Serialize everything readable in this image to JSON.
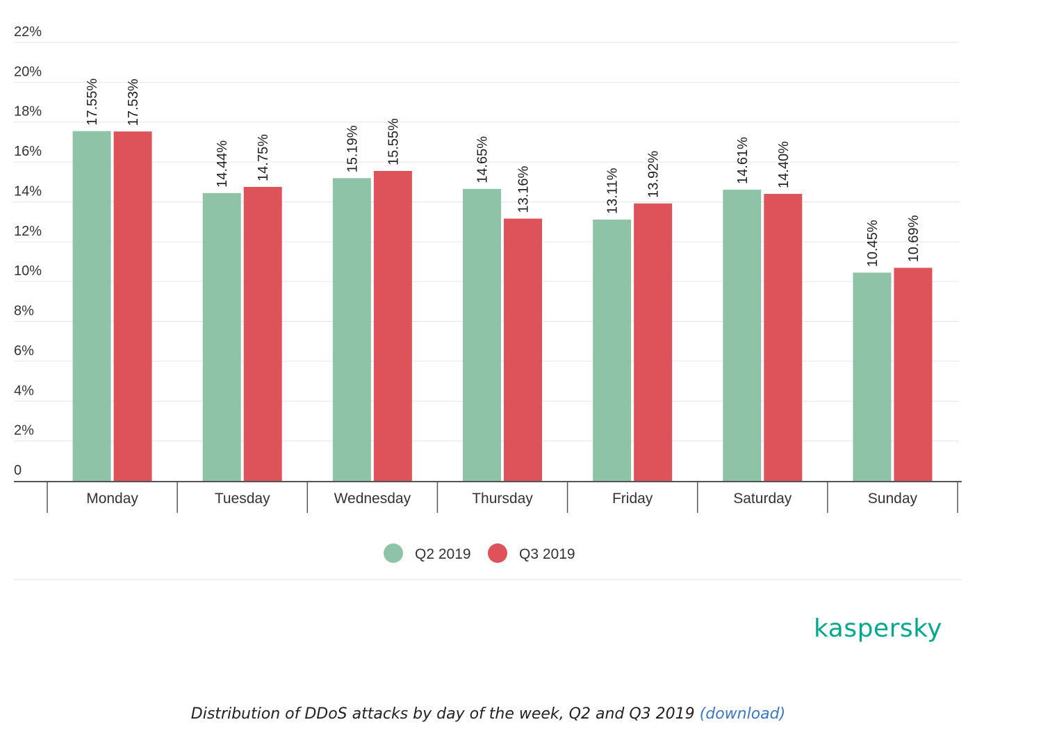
{
  "chart_data": {
    "type": "bar",
    "categories": [
      "Monday",
      "Tuesday",
      "Wednesday",
      "Thursday",
      "Friday",
      "Saturday",
      "Sunday"
    ],
    "series": [
      {
        "name": "Q2 2019",
        "color": "#8fc3a8",
        "values": [
          17.55,
          14.44,
          15.19,
          14.65,
          13.11,
          14.61,
          10.45
        ],
        "labels": [
          "17.55%",
          "14.44%",
          "15.19%",
          "14.65%",
          "13.11%",
          "14.61%",
          "10.45%"
        ]
      },
      {
        "name": "Q3 2019",
        "color": "#dd5359",
        "values": [
          17.53,
          14.75,
          15.55,
          13.16,
          13.92,
          14.4,
          10.69
        ],
        "labels": [
          "17.53%",
          "14.75%",
          "15.55%",
          "13.16%",
          "13.92%",
          "14.40%",
          "10.69%"
        ]
      }
    ],
    "yticks": [
      0,
      2,
      4,
      6,
      8,
      10,
      12,
      14,
      16,
      18,
      20,
      22
    ],
    "ytick_labels": [
      "0",
      "2%",
      "4%",
      "6%",
      "8%",
      "10%",
      "12%",
      "14%",
      "16%",
      "18%",
      "20%",
      "22%"
    ],
    "ylim": [
      0,
      22
    ],
    "grid": true,
    "legend": "bottom-center",
    "title": "",
    "xlabel": "",
    "ylabel": ""
  },
  "brand": {
    "logo_text": "kaspersky",
    "color": "#00a88e"
  },
  "caption": {
    "text": "Distribution of DDoS attacks by day of the week, Q2 and Q3 2019",
    "link_label": "(download)"
  }
}
